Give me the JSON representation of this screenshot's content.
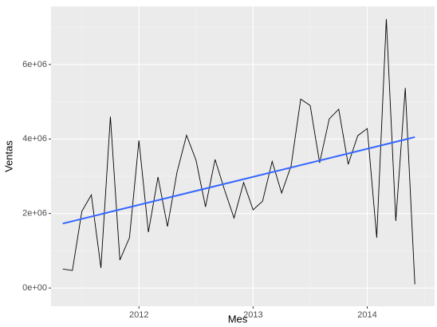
{
  "chart_data": {
    "type": "line",
    "x_label": "Mes",
    "y_label": "Ventas",
    "xlim": [
      2011.23,
      2014.59
    ],
    "xticks": [
      2012,
      2013,
      2014
    ],
    "ylim": [
      -490000,
      7560000
    ],
    "yticks": [
      {
        "value": 0,
        "label": "0e+00"
      },
      {
        "value": 2000000,
        "label": "2e+06"
      },
      {
        "value": 4000000,
        "label": "4e+06"
      },
      {
        "value": 6000000,
        "label": "6e+06"
      }
    ],
    "grid": true,
    "series": [
      {
        "color": "#000000",
        "x": [
          2011.333,
          2011.417,
          2011.5,
          2011.583,
          2011.667,
          2011.75,
          2011.833,
          2011.917,
          2012,
          2012.083,
          2012.167,
          2012.25,
          2012.333,
          2012.417,
          2012.5,
          2012.583,
          2012.667,
          2012.75,
          2012.833,
          2012.917,
          2013,
          2013.083,
          2013.167,
          2013.25,
          2013.333,
          2013.417,
          2013.5,
          2013.583,
          2013.667,
          2013.75,
          2013.833,
          2013.917,
          2014,
          2014.083,
          2014.167,
          2014.25,
          2014.333,
          2014.417
        ],
        "values": [
          510000,
          470000,
          2060000,
          2500000,
          540000,
          4600000,
          750000,
          1350000,
          3960000,
          1500000,
          2980000,
          1650000,
          3100000,
          4100000,
          3430000,
          2180000,
          3450000,
          2630000,
          1880000,
          2830000,
          2100000,
          2330000,
          3400000,
          2550000,
          3280000,
          5070000,
          4900000,
          3360000,
          4540000,
          4800000,
          3320000,
          4090000,
          4280000,
          1350000,
          7220000,
          1800000,
          5370000,
          100000
        ]
      },
      {
        "color": "#3366FF",
        "x": [
          2011.333,
          2014.417
        ],
        "values": [
          1730000,
          4050000
        ]
      }
    ]
  }
}
